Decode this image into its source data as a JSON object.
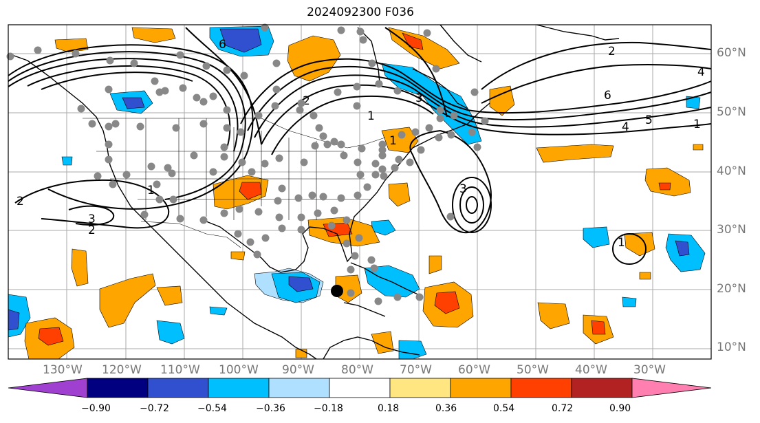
{
  "title": "2024092300 F036",
  "lon_labels": [
    "130°W",
    "120°W",
    "110°W",
    "100°W",
    "90°W",
    "80°W",
    "70°W",
    "60°W",
    "50°W",
    "40°W",
    "30°W"
  ],
  "lat_labels": [
    "60°N",
    "50°N",
    "40°N",
    "30°N",
    "20°N",
    "10°N"
  ],
  "contour_labels": [
    "2",
    "2",
    "6",
    "6",
    "5",
    "4",
    "1",
    "1",
    "2",
    "3",
    "3",
    "1",
    "1",
    "4",
    "3",
    "2",
    "1"
  ],
  "colorbar": {
    "ticks": [
      "−0.90",
      "−0.72",
      "−0.54",
      "−0.36",
      "−0.18",
      "0.18",
      "0.36",
      "0.54",
      "0.72",
      "0.90"
    ],
    "colors": [
      "#a040d0",
      "#000080",
      "#3050d0",
      "#00bfff",
      "#b0e0ff",
      "#ffffff",
      "#ffe680",
      "#ffa500",
      "#ff4000",
      "#b22222",
      "#ff80b0"
    ]
  },
  "colors": {
    "pos_light": "#ffa500",
    "pos_mid": "#ff4000",
    "neg_light": "#00bfff",
    "neg_mid": "#3050d0",
    "station": "#888888"
  }
}
